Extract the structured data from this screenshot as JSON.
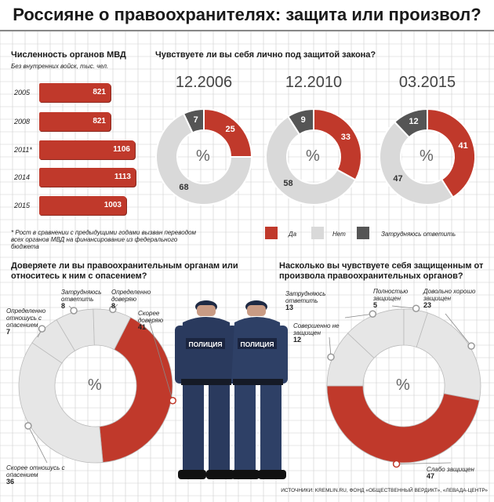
{
  "title": "Россияне о правоохранителях: защита или произвол?",
  "bar_section": {
    "title": "Численность органов МВД",
    "subtitle": "Без внутренних войск, тыс. чел.",
    "footnote": "* Рост в сравнении с предыдущими годами вызван переводом всех органов МВД на финансирование из федерального бюджета"
  },
  "protection_section": {
    "question": "Чувствуете ли вы себя лично под защитой закона?"
  },
  "legend": {
    "yes": "Да",
    "no": "Нет",
    "unsure": "Затрудняюсь ответить"
  },
  "trust_section": {
    "question": "Доверяете ли вы правоохранительным органам или относитесь к ним с опасением?"
  },
  "safety_section": {
    "question": "Насколько вы чувствуете себя защищенным от произвола правоохранительных органов?"
  },
  "police": {
    "patch_text": "ПОЛИЦИЯ"
  },
  "source": "ИСТОЧНИКИ: KREMLIN.RU, ФОНД «ОБЩЕСТВЕННЫЙ ВЕРДИКТ», «ЛЕВАДА-ЦЕНТР»",
  "colors": {
    "red": "#c0392b",
    "light": "#d9d9d9",
    "dark": "#555555",
    "grid": "#cfcfcf",
    "title_bg": "#ffffff"
  },
  "chart_data": [
    {
      "type": "bar",
      "orientation": "horizontal",
      "title": "Численность органов МВД",
      "subtitle": "Без внутренних войск, тыс. чел.",
      "categories": [
        "2005",
        "2008",
        "2011*",
        "2014",
        "2015"
      ],
      "values": [
        821,
        821,
        1106,
        1113,
        1003
      ],
      "value_labels": [
        "821",
        "821",
        "1106",
        "1113",
        "1003"
      ],
      "xlim": [
        0,
        1113
      ]
    },
    {
      "type": "pie",
      "style": "donut",
      "question": "Чувствуете ли вы себя лично под защитой закона?",
      "center_label": "%",
      "slice_order": [
        "Да",
        "Нет",
        "Затрудняюсь ответить"
      ],
      "periods": [
        {
          "label": "12.2006",
          "values": [
            25,
            68,
            7
          ],
          "value_labels": [
            "25",
            "68",
            "7"
          ]
        },
        {
          "label": "12.2010",
          "values": [
            33,
            58,
            9
          ],
          "value_labels": [
            "33",
            "58",
            "9"
          ]
        },
        {
          "label": "03.2015",
          "values": [
            41,
            47,
            12
          ],
          "value_labels": [
            "41",
            "47",
            "12"
          ]
        }
      ],
      "colors": [
        "#c0392b",
        "#d9d9d9",
        "#555555"
      ]
    },
    {
      "type": "pie",
      "style": "donut",
      "question": "Доверяете ли вы правоохранительным органам или относитесь к ним с опасением?",
      "center_label": "%",
      "slices": [
        {
          "label": "Скорее доверяю",
          "value": 41,
          "value_label": "41",
          "color": "#c0392b"
        },
        {
          "label": "Скорее отношусь с опасением",
          "value": 36,
          "value_label": "36",
          "color": "#e6e6e6"
        },
        {
          "label": "Определенно отношусь с опасением",
          "value": 7,
          "value_label": "7",
          "color": "#e6e6e6"
        },
        {
          "label": "Затрудняюсь ответить",
          "value": 8,
          "value_label": "8",
          "color": "#e6e6e6"
        },
        {
          "label": "Определенно доверяю",
          "value": 8,
          "value_label": "8",
          "color": "#e6e6e6"
        }
      ]
    },
    {
      "type": "pie",
      "style": "donut",
      "question": "Насколько вы чувствуете себя защищенным от произвола правоохранительных органов?",
      "center_label": "%",
      "slices": [
        {
          "label": "Довольно хорошо защищен",
          "value": 23,
          "value_label": "23",
          "color": "#e6e6e6"
        },
        {
          "label": "Слабо защищен",
          "value": 47,
          "value_label": "47",
          "color": "#c0392b"
        },
        {
          "label": "Совершенно не защищен",
          "value": 12,
          "value_label": "12",
          "color": "#e6e6e6"
        },
        {
          "label": "Затрудняюсь ответить",
          "value": 13,
          "value_label": "13",
          "color": "#e6e6e6"
        },
        {
          "label": "Полностью защищен",
          "value": 5,
          "value_label": "5",
          "color": "#e6e6e6"
        }
      ]
    }
  ]
}
